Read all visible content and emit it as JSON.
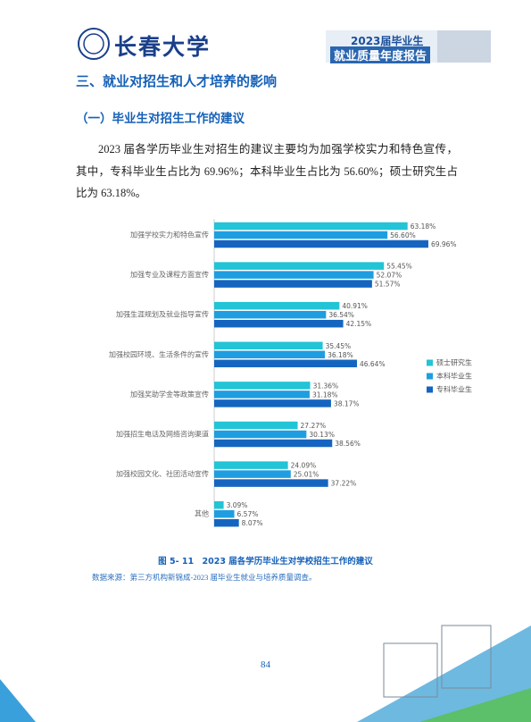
{
  "header": {
    "logo_text": "长春大学",
    "report_year": "2023届毕业生",
    "report_title": "就业质量年度报告"
  },
  "section_title": "三、就业对招生和人才培养的影响",
  "subsection_title": "（一）毕业生对招生工作的建议",
  "paragraph": "2023 届各学历毕业生对招生的建议主要均为加强学校实力和特色宣传，其中，专科毕业生占比为 69.96%；本科毕业生占比为 56.60%；硕士研究生占比为 63.18%。",
  "chart_data": {
    "type": "bar",
    "orientation": "horizontal",
    "categories": [
      "加强学校实力和特色宣传",
      "加强专业及课程方面宣传",
      "加强生涯规划及就业指导宣传",
      "加强校园环境、生活条件的宣传",
      "加强奖助学金等政策宣传",
      "加强招生电话及网络咨询渠道",
      "加强校园文化、社团活动宣传",
      "其他"
    ],
    "series": [
      {
        "name": "硕士研究生",
        "color": "#22c4d6",
        "values": [
          63.18,
          55.45,
          40.91,
          35.45,
          31.36,
          27.27,
          24.09,
          3.09
        ],
        "value_labels": [
          "63.18%",
          "55.45%",
          "40.91%",
          "35.45%",
          "31.36%",
          "27.27%",
          "24.09%",
          "3.09%"
        ]
      },
      {
        "name": "本科毕业生",
        "color": "#1e9ee0",
        "values": [
          56.6,
          52.07,
          36.54,
          36.18,
          31.18,
          30.13,
          25.01,
          6.57
        ],
        "value_labels": [
          "56.60%",
          "52.07%",
          "36.54%",
          "36.18%",
          "31.18%",
          "30.13%",
          "25.01%",
          "6.57%"
        ]
      },
      {
        "name": "专科毕业生",
        "color": "#1565c0",
        "values": [
          69.96,
          51.57,
          42.15,
          46.64,
          38.17,
          38.56,
          37.22,
          8.07
        ],
        "value_labels": [
          "69.96%",
          "51.57%",
          "42.15%",
          "46.64%",
          "38.17%",
          "38.56%",
          "37.22%",
          "8.07%"
        ]
      }
    ]
  },
  "caption": "图 5- 11　2023 届各学历毕业生对学校招生工作的建议",
  "source": "数据来源：第三方机构新锦成-2023 届毕业生就业与培养质量调查。",
  "page_number": "84"
}
